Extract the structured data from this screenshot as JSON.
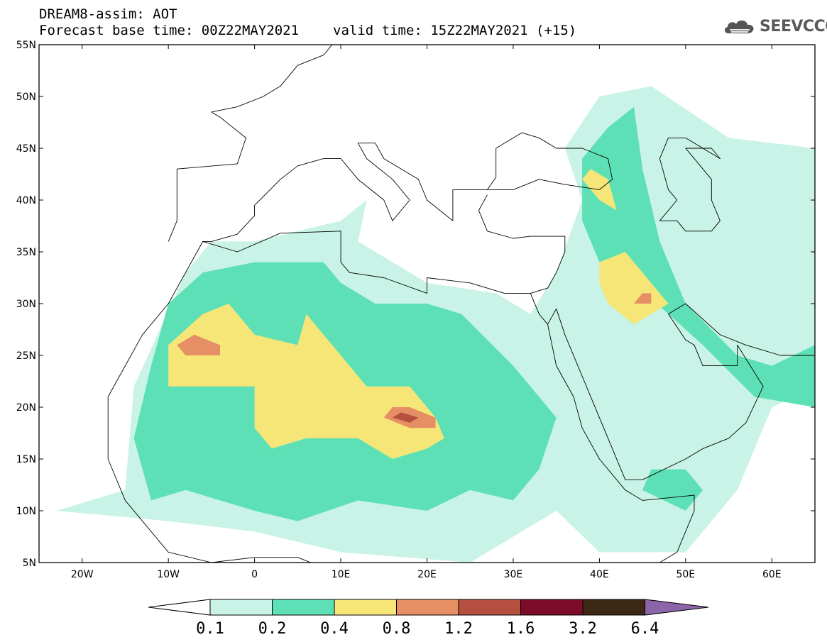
{
  "header": {
    "model_line": "DREAM8-assim: AOT",
    "base_time": "Forecast base time: 00Z22MAY2021",
    "valid_time": "valid time: 15Z22MAY2021 (+15)"
  },
  "logo": {
    "text": "SEEVCCC",
    "icon": "cloud-logo-icon"
  },
  "map": {
    "lon_range": [
      -25,
      65
    ],
    "lat_range": [
      5,
      55
    ],
    "lat_ticks": [
      {
        "value": 55,
        "label": "55N"
      },
      {
        "value": 50,
        "label": "50N"
      },
      {
        "value": 45,
        "label": "45N"
      },
      {
        "value": 40,
        "label": "40N"
      },
      {
        "value": 35,
        "label": "35N"
      },
      {
        "value": 30,
        "label": "30N"
      },
      {
        "value": 25,
        "label": "25N"
      },
      {
        "value": 20,
        "label": "20N"
      },
      {
        "value": 15,
        "label": "15N"
      },
      {
        "value": 10,
        "label": "10N"
      },
      {
        "value": 5,
        "label": "5N"
      }
    ],
    "lon_ticks": [
      {
        "value": -20,
        "label": "20W"
      },
      {
        "value": -10,
        "label": "10W"
      },
      {
        "value": 0,
        "label": "0"
      },
      {
        "value": 10,
        "label": "10E"
      },
      {
        "value": 20,
        "label": "20E"
      },
      {
        "value": 30,
        "label": "30E"
      },
      {
        "value": 40,
        "label": "40E"
      },
      {
        "value": 50,
        "label": "50E"
      },
      {
        "value": 60,
        "label": "60E"
      }
    ],
    "field": "AOT",
    "dust_regions": [
      {
        "level": 0.1,
        "points": [
          [
            -23,
            10
          ],
          [
            -15,
            12
          ],
          [
            -14,
            22
          ],
          [
            -8,
            33
          ],
          [
            -5,
            36
          ],
          [
            0,
            36
          ],
          [
            10,
            38
          ],
          [
            13,
            40
          ],
          [
            12,
            36
          ],
          [
            20,
            32
          ],
          [
            28,
            31
          ],
          [
            32,
            29
          ],
          [
            35,
            33
          ],
          [
            38,
            40
          ],
          [
            36,
            45
          ],
          [
            40,
            50
          ],
          [
            46,
            51
          ],
          [
            55,
            46
          ],
          [
            65,
            45
          ],
          [
            65,
            22
          ],
          [
            60,
            20
          ],
          [
            56,
            12
          ],
          [
            50,
            6
          ],
          [
            40,
            6
          ],
          [
            35,
            10
          ],
          [
            25,
            5
          ],
          [
            10,
            6
          ],
          [
            0,
            8
          ],
          [
            -10,
            9
          ]
        ]
      },
      {
        "level": 0.2,
        "points": [
          [
            -12,
            11
          ],
          [
            -14,
            17
          ],
          [
            -12,
            24
          ],
          [
            -10,
            30
          ],
          [
            -6,
            33
          ],
          [
            0,
            34
          ],
          [
            8,
            34
          ],
          [
            10,
            32
          ],
          [
            14,
            30
          ],
          [
            20,
            30
          ],
          [
            24,
            29
          ],
          [
            30,
            24
          ],
          [
            35,
            19
          ],
          [
            33,
            14
          ],
          [
            30,
            11
          ],
          [
            25,
            12
          ],
          [
            20,
            10
          ],
          [
            12,
            11
          ],
          [
            5,
            9
          ],
          [
            0,
            10
          ],
          [
            -8,
            12
          ]
        ]
      },
      {
        "level": 0.2,
        "points": [
          [
            38,
            44
          ],
          [
            41,
            47
          ],
          [
            44,
            49
          ],
          [
            45,
            43
          ],
          [
            47,
            36
          ],
          [
            50,
            30
          ],
          [
            56,
            25
          ],
          [
            60,
            24
          ],
          [
            65,
            26
          ],
          [
            65,
            20
          ],
          [
            58,
            21
          ],
          [
            52,
            26
          ],
          [
            48,
            29
          ],
          [
            44,
            32
          ],
          [
            40,
            34
          ],
          [
            38,
            38
          ]
        ]
      },
      {
        "level": 0.2,
        "points": [
          [
            45,
            12
          ],
          [
            50,
            10
          ],
          [
            52,
            12
          ],
          [
            50,
            14
          ],
          [
            46,
            14
          ]
        ]
      },
      {
        "level": 0.4,
        "points": [
          [
            -10,
            26
          ],
          [
            -10,
            22
          ],
          [
            -6,
            22
          ],
          [
            0,
            22
          ],
          [
            0,
            18
          ],
          [
            2,
            16
          ],
          [
            6,
            17
          ],
          [
            12,
            17
          ],
          [
            16,
            15
          ],
          [
            20,
            16
          ],
          [
            22,
            17
          ],
          [
            21,
            19
          ],
          [
            18,
            22
          ],
          [
            13,
            22
          ],
          [
            10,
            25
          ],
          [
            6,
            29
          ],
          [
            5,
            26
          ],
          [
            0,
            27
          ],
          [
            -3,
            30
          ],
          [
            -6,
            29
          ]
        ]
      },
      {
        "level": 0.4,
        "points": [
          [
            40,
            34
          ],
          [
            43,
            35
          ],
          [
            45,
            33
          ],
          [
            48,
            30
          ],
          [
            46,
            29
          ],
          [
            44,
            28
          ],
          [
            41,
            30
          ],
          [
            40,
            32
          ]
        ]
      },
      {
        "level": 0.4,
        "points": [
          [
            39,
            43
          ],
          [
            41,
            42
          ],
          [
            42,
            39
          ],
          [
            40,
            40
          ],
          [
            38,
            42
          ]
        ]
      },
      {
        "level": 0.8,
        "points": [
          [
            -9,
            26
          ],
          [
            -8,
            25
          ],
          [
            -4,
            25
          ],
          [
            -4,
            26
          ],
          [
            -7,
            27
          ]
        ]
      },
      {
        "level": 0.8,
        "points": [
          [
            15,
            19
          ],
          [
            18,
            18
          ],
          [
            21,
            18
          ],
          [
            21,
            19
          ],
          [
            18,
            20
          ],
          [
            16,
            20
          ]
        ]
      },
      {
        "level": 0.8,
        "points": [
          [
            44,
            30
          ],
          [
            46,
            30
          ],
          [
            46,
            31
          ],
          [
            45,
            31
          ]
        ]
      },
      {
        "level": 1.2,
        "points": [
          [
            16,
            19
          ],
          [
            18,
            18.5
          ],
          [
            19,
            19
          ],
          [
            17,
            19.5
          ]
        ]
      }
    ],
    "coastlines": [
      {
        "points": [
          [
            -10,
            36
          ],
          [
            -9,
            38
          ],
          [
            -9,
            43
          ],
          [
            -2,
            43.5
          ],
          [
            -1,
            46
          ],
          [
            -4,
            48
          ],
          [
            -5,
            48.5
          ],
          [
            -2,
            49
          ],
          [
            1,
            50
          ],
          [
            3,
            51
          ],
          [
            5,
            53
          ],
          [
            8,
            54
          ],
          [
            9,
            55
          ]
        ]
      },
      {
        "points": [
          [
            -6,
            36
          ],
          [
            -5,
            36
          ],
          [
            -2,
            36.7
          ],
          [
            0,
            38.5
          ],
          [
            0,
            39.5
          ],
          [
            3,
            42
          ],
          [
            5,
            43.3
          ],
          [
            8,
            44
          ],
          [
            10,
            44
          ],
          [
            12,
            42
          ],
          [
            15,
            40
          ],
          [
            16,
            38
          ],
          [
            18,
            40
          ],
          [
            16,
            42
          ],
          [
            13,
            44
          ],
          [
            12,
            45.5
          ],
          [
            14,
            45.5
          ],
          [
            15,
            44
          ],
          [
            19,
            42
          ],
          [
            20,
            40
          ],
          [
            23,
            38
          ],
          [
            23,
            41
          ],
          [
            26,
            41
          ],
          [
            28,
            41
          ],
          [
            30,
            41
          ],
          [
            33,
            42
          ],
          [
            36,
            41.5
          ],
          [
            40,
            41
          ],
          [
            41.5,
            42
          ],
          [
            41,
            44
          ],
          [
            38,
            45
          ],
          [
            35,
            45
          ],
          [
            33,
            46
          ],
          [
            31,
            46.5
          ],
          [
            28,
            45
          ],
          [
            28,
            44
          ],
          [
            28,
            42.2
          ],
          [
            27,
            41
          ]
        ]
      },
      {
        "points": [
          [
            -6,
            36
          ],
          [
            -2,
            35
          ],
          [
            3,
            36.8
          ],
          [
            10,
            37
          ],
          [
            10,
            34
          ],
          [
            11,
            33
          ],
          [
            15,
            32.5
          ],
          [
            20,
            31
          ],
          [
            20,
            32.5
          ],
          [
            25,
            32
          ],
          [
            29,
            31
          ],
          [
            32,
            31
          ],
          [
            34,
            31.5
          ],
          [
            35,
            33
          ],
          [
            36,
            35
          ],
          [
            36,
            36.5
          ],
          [
            32,
            36.5
          ],
          [
            30,
            36.3
          ],
          [
            27,
            37
          ],
          [
            26,
            39
          ],
          [
            27,
            40.5
          ]
        ]
      },
      {
        "points": [
          [
            -6,
            36
          ],
          [
            -10,
            30
          ],
          [
            -13,
            27
          ],
          [
            -17,
            21
          ],
          [
            -17,
            15
          ],
          [
            -15,
            11
          ],
          [
            -13,
            9
          ],
          [
            -10,
            6
          ],
          [
            -5,
            5
          ],
          [
            0,
            5.5
          ],
          [
            5,
            5.5
          ],
          [
            8,
            4.5
          ]
        ]
      },
      {
        "points": [
          [
            32,
            31
          ],
          [
            33,
            29
          ],
          [
            34,
            28
          ],
          [
            35,
            24
          ],
          [
            37,
            21
          ],
          [
            38,
            18
          ],
          [
            40,
            15
          ],
          [
            43,
            12
          ],
          [
            45,
            11
          ],
          [
            51,
            11.5
          ],
          [
            51,
            10
          ],
          [
            49,
            6
          ],
          [
            47,
            5
          ]
        ]
      },
      {
        "points": [
          [
            34,
            28
          ],
          [
            35,
            29.5
          ],
          [
            36,
            27
          ],
          [
            39,
            21
          ],
          [
            41,
            17
          ],
          [
            43,
            13
          ],
          [
            45,
            13
          ],
          [
            50,
            15
          ],
          [
            52,
            16
          ],
          [
            55,
            17
          ],
          [
            57,
            18.5
          ],
          [
            59,
            22
          ],
          [
            56,
            26
          ],
          [
            56,
            24
          ],
          [
            52,
            24
          ],
          [
            51,
            26
          ],
          [
            50,
            26.5
          ],
          [
            48,
            29
          ],
          [
            50,
            30
          ],
          [
            54,
            27
          ],
          [
            57,
            26
          ],
          [
            61,
            25
          ],
          [
            65,
            25
          ]
        ]
      },
      {
        "points": [
          [
            47,
            38
          ],
          [
            49,
            38
          ],
          [
            50,
            37
          ],
          [
            53,
            37
          ],
          [
            54,
            38
          ],
          [
            53,
            40
          ],
          [
            53,
            42
          ],
          [
            51,
            44
          ],
          [
            50,
            45
          ],
          [
            53,
            45
          ],
          [
            54,
            44
          ],
          [
            50,
            46
          ],
          [
            48,
            46
          ],
          [
            47,
            44
          ],
          [
            48,
            41
          ],
          [
            49,
            40
          ],
          [
            47,
            38
          ]
        ]
      }
    ]
  },
  "colorbar": {
    "labels": [
      "0.1",
      "0.2",
      "0.4",
      "0.8",
      "1.2",
      "1.6",
      "3.2",
      "6.4"
    ],
    "colors": [
      "#c8f3e6",
      "#5ee0b6",
      "#f6e677",
      "#e68e64",
      "#b55040",
      "#7d0c2a",
      "#3c2814",
      "#8c64a8"
    ],
    "under_color": "#ffffff",
    "over_color": "#8c64a8"
  },
  "palette": {
    "0.1": "#c8f3e6",
    "0.2": "#5ee0b6",
    "0.4": "#f6e677",
    "0.8": "#e68e64",
    "1.2": "#b55040"
  }
}
